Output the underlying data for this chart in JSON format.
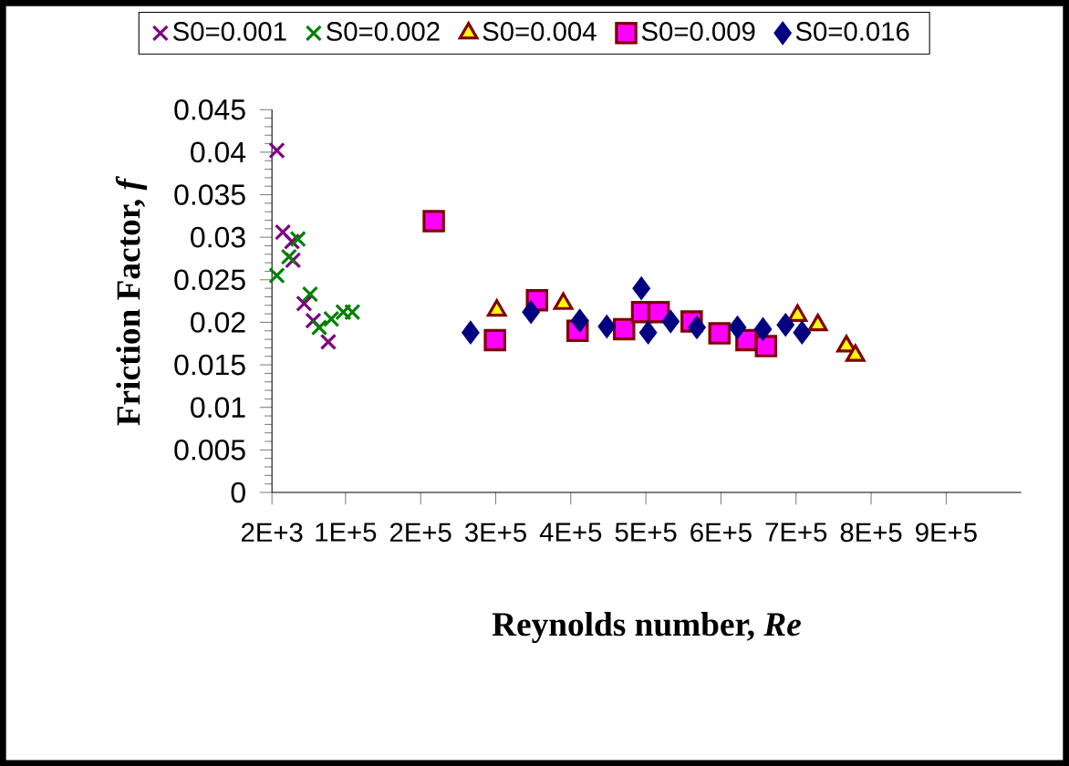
{
  "chart_data": {
    "type": "scatter",
    "xlabel": "Reynolds number, *Re*",
    "ylabel": "Friction Factor, *f*",
    "xlim": [
      2000,
      1000000
    ],
    "xticks": [
      {
        "value": 2000,
        "label": "2E+3"
      },
      {
        "value": 100000,
        "label": "1E+5"
      },
      {
        "value": 200000,
        "label": "2E+5"
      },
      {
        "value": 300000,
        "label": "3E+5"
      },
      {
        "value": 400000,
        "label": "4E+5"
      },
      {
        "value": 500000,
        "label": "5E+5"
      },
      {
        "value": 600000,
        "label": "6E+5"
      },
      {
        "value": 700000,
        "label": "7E+5"
      },
      {
        "value": 800000,
        "label": "8E+5"
      },
      {
        "value": 900000,
        "label": "9E+5"
      }
    ],
    "ylim": [
      0,
      0.045
    ],
    "yticks": [
      0,
      0.005,
      0.01,
      0.015,
      0.02,
      0.025,
      0.03,
      0.035,
      0.04,
      0.045
    ],
    "grid": false,
    "legend": "top",
    "series": [
      {
        "name": "S0=0.001",
        "color": "#800080",
        "marker": "cross",
        "x": [
          8500,
          16500,
          28600,
          30000,
          44800,
          57000,
          77000
        ],
        "values": [
          0.0402,
          0.0306,
          0.0295,
          0.0273,
          0.0222,
          0.0202,
          0.0177
        ]
      },
      {
        "name": "S0=0.002",
        "color": "#008000",
        "marker": "cross",
        "x": [
          8500,
          24600,
          36600,
          52800,
          65000,
          81000,
          97000,
          109000
        ],
        "values": [
          0.0255,
          0.0277,
          0.0298,
          0.0233,
          0.0194,
          0.0204,
          0.0212,
          0.0212
        ]
      },
      {
        "name": "S0=0.004",
        "color": "#ffff00",
        "marker": "triangle",
        "x": [
          301500,
          390000,
          702000,
          729000,
          767000,
          779000
        ],
        "values": [
          0.0214,
          0.0222,
          0.0208,
          0.0197,
          0.0172,
          0.0161
        ]
      },
      {
        "name": "S0=0.009",
        "color": "#ff00ff",
        "marker": "square",
        "x": [
          217500,
          299000,
          355000,
          409000,
          471000,
          495000,
          517000,
          561000,
          598000,
          634000,
          660000
        ],
        "values": [
          0.0319,
          0.0179,
          0.0226,
          0.019,
          0.0192,
          0.0212,
          0.0212,
          0.0201,
          0.0187,
          0.0179,
          0.0172
        ]
      },
      {
        "name": "S0=0.016",
        "color": "#000080",
        "marker": "diamond",
        "x": [
          266500,
          347000,
          412000,
          448000,
          494000,
          503000,
          533000,
          568000,
          622000,
          656000,
          686000,
          708000
        ],
        "values": [
          0.0188,
          0.0212,
          0.0202,
          0.0195,
          0.024,
          0.0188,
          0.0201,
          0.0194,
          0.0194,
          0.0192,
          0.0197,
          0.0188
        ]
      }
    ]
  }
}
